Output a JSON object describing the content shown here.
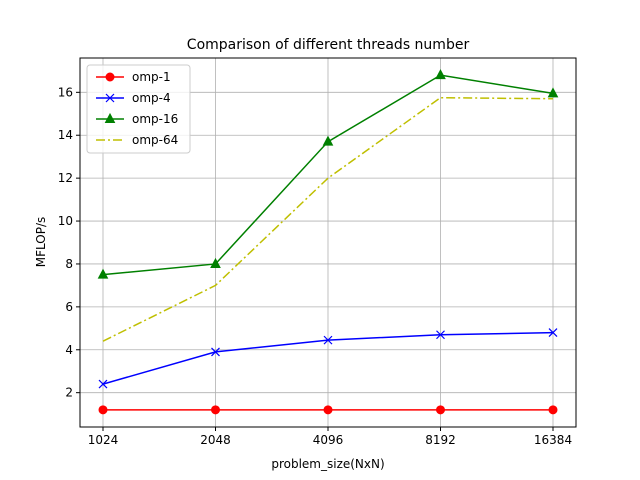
{
  "chart_data": {
    "type": "line",
    "title": "Comparison of different threads number",
    "xlabel": "problem_size(NxN)",
    "ylabel": "MFLOP/s",
    "categories": [
      "1024",
      "2048",
      "4096",
      "8192",
      "16384"
    ],
    "ylim": [
      0.4,
      17.6
    ],
    "yticks": [
      2,
      4,
      6,
      8,
      10,
      12,
      14,
      16
    ],
    "ytick_labels": [
      "2",
      "4",
      "6",
      "8",
      "10",
      "12",
      "14",
      "16"
    ],
    "grid": true,
    "legend_position": "top-left",
    "series": [
      {
        "name": "omp-1",
        "values": [
          1.2,
          1.2,
          1.2,
          1.2,
          1.2
        ],
        "color": "#ff0000",
        "marker": "circle",
        "linestyle": "solid"
      },
      {
        "name": "omp-4",
        "values": [
          2.4,
          3.9,
          4.45,
          4.7,
          4.8
        ],
        "color": "#0000ff",
        "marker": "x",
        "linestyle": "solid"
      },
      {
        "name": "omp-16",
        "values": [
          7.5,
          8.0,
          13.7,
          16.8,
          15.95
        ],
        "color": "#008000",
        "marker": "triangle",
        "linestyle": "solid"
      },
      {
        "name": "omp-64",
        "values": [
          4.4,
          7.0,
          12.0,
          15.75,
          15.7
        ],
        "color": "#bfbf00",
        "marker": "none",
        "linestyle": "dashdot"
      }
    ]
  }
}
